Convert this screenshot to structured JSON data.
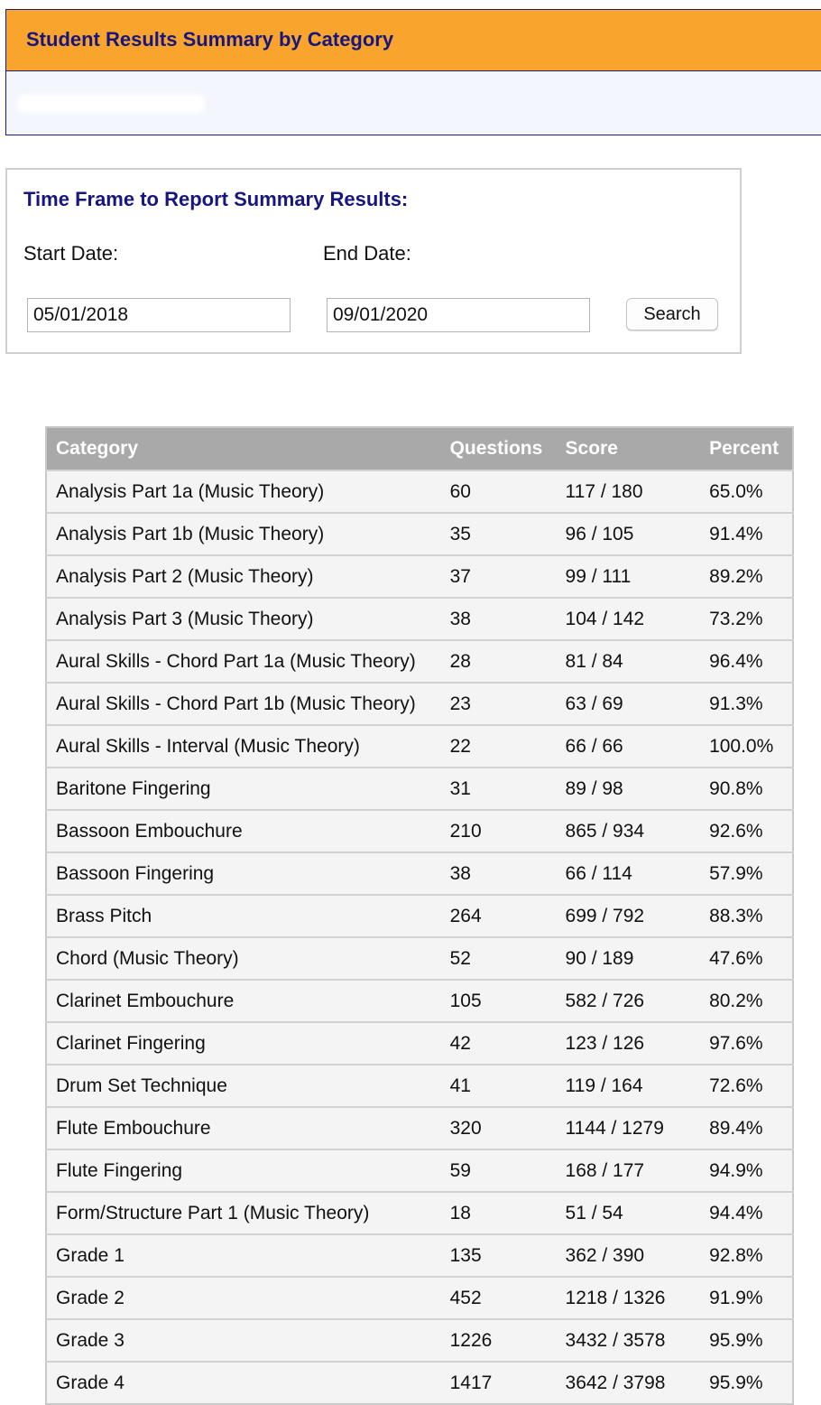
{
  "header": {
    "title": "Student Results Summary by Category"
  },
  "filter": {
    "title": "Time Frame to Report Summary Results:",
    "start_label": "Start Date:",
    "end_label": "End Date:",
    "start_value": "05/01/2018",
    "end_value": "09/01/2020",
    "search_label": "Search"
  },
  "table": {
    "headers": [
      "Category",
      "Questions",
      "Score",
      "Percent"
    ],
    "rows": [
      [
        "Analysis Part 1a (Music Theory)",
        "60",
        "117 / 180",
        "65.0%"
      ],
      [
        "Analysis Part 1b (Music Theory)",
        "35",
        "96 / 105",
        "91.4%"
      ],
      [
        "Analysis Part 2 (Music Theory)",
        "37",
        "99 / 111",
        "89.2%"
      ],
      [
        "Analysis Part 3 (Music Theory)",
        "38",
        "104 / 142",
        "73.2%"
      ],
      [
        "Aural Skills - Chord Part 1a (Music Theory)",
        "28",
        "81 / 84",
        "96.4%"
      ],
      [
        "Aural Skills - Chord Part 1b (Music Theory)",
        "23",
        "63 / 69",
        "91.3%"
      ],
      [
        "Aural Skills - Interval (Music Theory)",
        "22",
        "66 / 66",
        "100.0%"
      ],
      [
        "Baritone Fingering",
        "31",
        "89 / 98",
        "90.8%"
      ],
      [
        "Bassoon Embouchure",
        "210",
        "865 / 934",
        "92.6%"
      ],
      [
        "Bassoon Fingering",
        "38",
        "66 / 114",
        "57.9%"
      ],
      [
        "Brass Pitch",
        "264",
        "699 / 792",
        "88.3%"
      ],
      [
        "Chord (Music Theory)",
        "52",
        "90 / 189",
        "47.6%"
      ],
      [
        "Clarinet Embouchure",
        "105",
        "582 / 726",
        "80.2%"
      ],
      [
        "Clarinet Fingering",
        "42",
        "123 / 126",
        "97.6%"
      ],
      [
        "Drum Set Technique",
        "41",
        "119 / 164",
        "72.6%"
      ],
      [
        "Flute Embouchure",
        "320",
        "1144 / 1279",
        "89.4%"
      ],
      [
        "Flute Fingering",
        "59",
        "168 / 177",
        "94.9%"
      ],
      [
        "Form/Structure Part 1 (Music Theory)",
        "18",
        "51 / 54",
        "94.4%"
      ],
      [
        "Grade 1",
        "135",
        "362 / 390",
        "92.8%"
      ],
      [
        "Grade 2",
        "452",
        "1218 / 1326",
        "91.9%"
      ],
      [
        "Grade 3",
        "1226",
        "3432 / 3578",
        "95.9%"
      ],
      [
        "Grade 4",
        "1417",
        "3642 / 3798",
        "95.9%"
      ]
    ]
  }
}
